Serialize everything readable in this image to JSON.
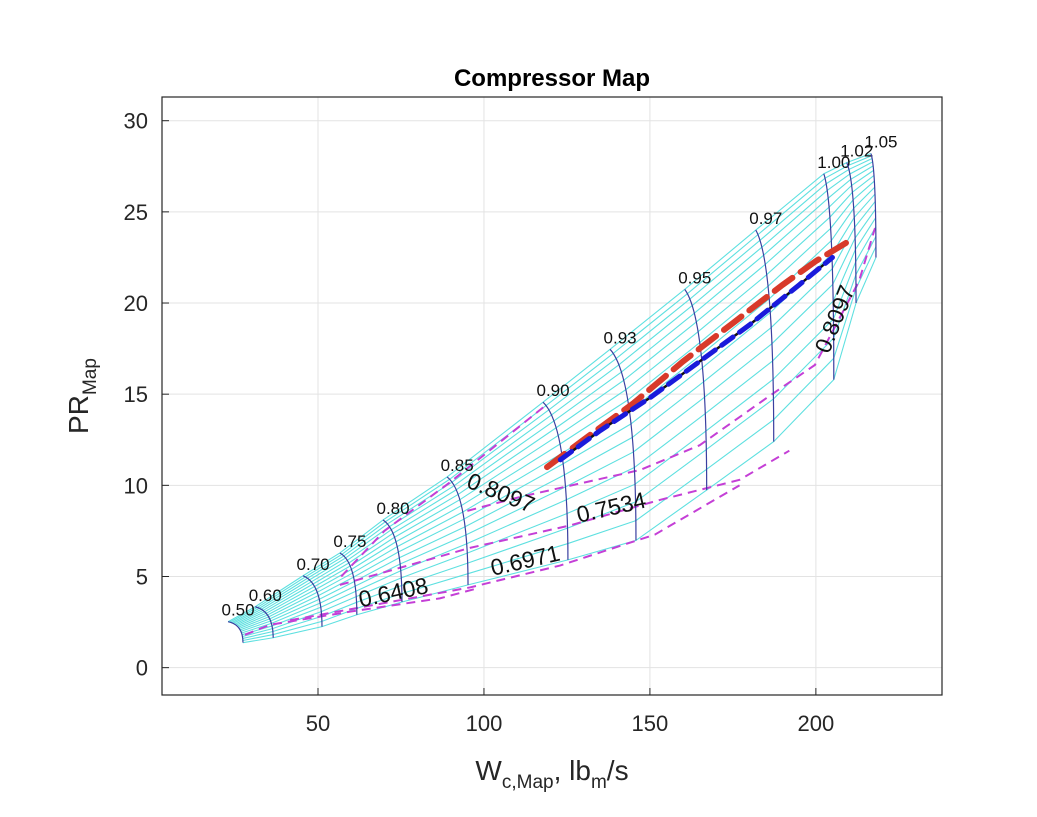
{
  "chart_data": {
    "type": "line",
    "title": "Compressor Map",
    "xlabel": {
      "main": "W",
      "sub": "c,Map",
      "mid": ", lb",
      "sub2": "m",
      "end": "/s"
    },
    "ylabel": {
      "main": "PR",
      "sub": "Map"
    },
    "xlim": [
      3,
      238
    ],
    "ylim": [
      -1.5,
      31.3
    ],
    "xticks": [
      50,
      100,
      150,
      200
    ],
    "yticks": [
      0,
      5,
      10,
      15,
      20,
      25,
      30
    ],
    "grid": true,
    "colors": {
      "speed_lines": "#3a3fa0",
      "beta_lines": "#5ee0e0",
      "efficiency_contours": "#c43fd6",
      "op_line_red": "#d83a2a",
      "op_line_blue": "#1a1adb",
      "op_line_black": "#111111"
    },
    "speed_lines": [
      {
        "label": "0.50",
        "surge": [
          22.9,
          2.52
        ],
        "choke": [
          27.4,
          1.37
        ]
      },
      {
        "label": "0.60",
        "surge": [
          31.1,
          3.34
        ],
        "choke": [
          36.5,
          1.64
        ]
      },
      {
        "label": "0.70",
        "surge": [
          45.5,
          5.04
        ],
        "choke": [
          51.2,
          2.25
        ]
      },
      {
        "label": "0.75",
        "surge": [
          56.6,
          6.29
        ],
        "choke": [
          61.7,
          2.9
        ]
      },
      {
        "label": "0.80",
        "surge": [
          69.6,
          8.1
        ],
        "choke": [
          75.3,
          3.6
        ]
      },
      {
        "label": "0.85",
        "surge": [
          88.9,
          10.46
        ],
        "choke": [
          95.2,
          4.54
        ]
      },
      {
        "label": "0.90",
        "surge": [
          117.8,
          14.56
        ],
        "choke": [
          125.3,
          5.91
        ]
      },
      {
        "label": "0.93",
        "surge": [
          138.0,
          17.46
        ],
        "choke": [
          145.8,
          6.98
        ]
      },
      {
        "label": "0.95",
        "surge": [
          160.5,
          20.75
        ],
        "choke": [
          167.1,
          9.74
        ]
      },
      {
        "label": "0.97",
        "surge": [
          181.9,
          24.0
        ],
        "choke": [
          187.3,
          12.4
        ]
      },
      {
        "label": "1.00",
        "surge": [
          202.4,
          27.09
        ],
        "choke": [
          205.4,
          15.8
        ]
      },
      {
        "label": "1.02",
        "surge": [
          209.3,
          27.7
        ],
        "choke": [
          212.1,
          20.0
        ]
      },
      {
        "label": "1.05",
        "surge": [
          216.6,
          28.2
        ],
        "choke": [
          218.1,
          22.5
        ]
      }
    ],
    "efficiency_contours": [
      {
        "label": "0.8097",
        "points": [
          [
            57,
            5.0
          ],
          [
            70,
            7.5
          ],
          [
            90,
            10.2
          ],
          [
            118,
            14.3
          ]
        ]
      },
      {
        "label": "0.8097",
        "points": [
          [
            95,
            8.6
          ],
          [
            110.8,
            9.36
          ],
          [
            147,
            10.84
          ],
          [
            165,
            12.2
          ],
          [
            186,
            14.9
          ],
          [
            199.7,
            16.6
          ],
          [
            213,
            21.2
          ],
          [
            217.8,
            24.1
          ]
        ]
      },
      {
        "label": "0.7534",
        "points": [
          [
            56.6,
            4.54
          ],
          [
            95.8,
            6.57
          ],
          [
            125.9,
            7.8
          ],
          [
            153,
            9.2
          ],
          [
            177,
            10.3
          ],
          [
            192,
            11.9
          ]
        ]
      },
      {
        "label": "0.6971",
        "points": [
          [
            41.6,
            2.6
          ],
          [
            74.7,
            3.7
          ],
          [
            95.8,
            4.4
          ],
          [
            122.9,
            5.6
          ],
          [
            151.5,
            7.3
          ],
          [
            177,
            10.0
          ]
        ]
      },
      {
        "label": "0.6408",
        "points": [
          [
            28,
            1.8
          ],
          [
            35.5,
            2.35
          ],
          [
            59.6,
            3.07
          ],
          [
            86.7,
            3.8
          ],
          [
            97,
            4.3
          ]
        ]
      }
    ],
    "operating_lines": [
      {
        "color": "red",
        "points": [
          [
            119,
            11.0
          ],
          [
            130,
            12.5
          ],
          [
            145,
            14.5
          ],
          [
            160,
            16.8
          ],
          [
            175,
            18.9
          ],
          [
            190,
            21.0
          ],
          [
            200,
            22.3
          ],
          [
            210,
            23.4
          ]
        ]
      },
      {
        "color": "black",
        "points": [
          [
            123,
            11.4
          ],
          [
            135,
            13.0
          ],
          [
            150,
            14.8
          ],
          [
            165,
            16.8
          ],
          [
            180,
            18.8
          ],
          [
            195,
            21.0
          ],
          [
            205,
            22.5
          ]
        ]
      },
      {
        "color": "blue",
        "points": [
          [
            123,
            11.4
          ],
          [
            135,
            13.0
          ],
          [
            150,
            14.8
          ],
          [
            165,
            16.8
          ],
          [
            180,
            18.8
          ],
          [
            195,
            21.0
          ],
          [
            205,
            22.5
          ]
        ]
      }
    ]
  }
}
